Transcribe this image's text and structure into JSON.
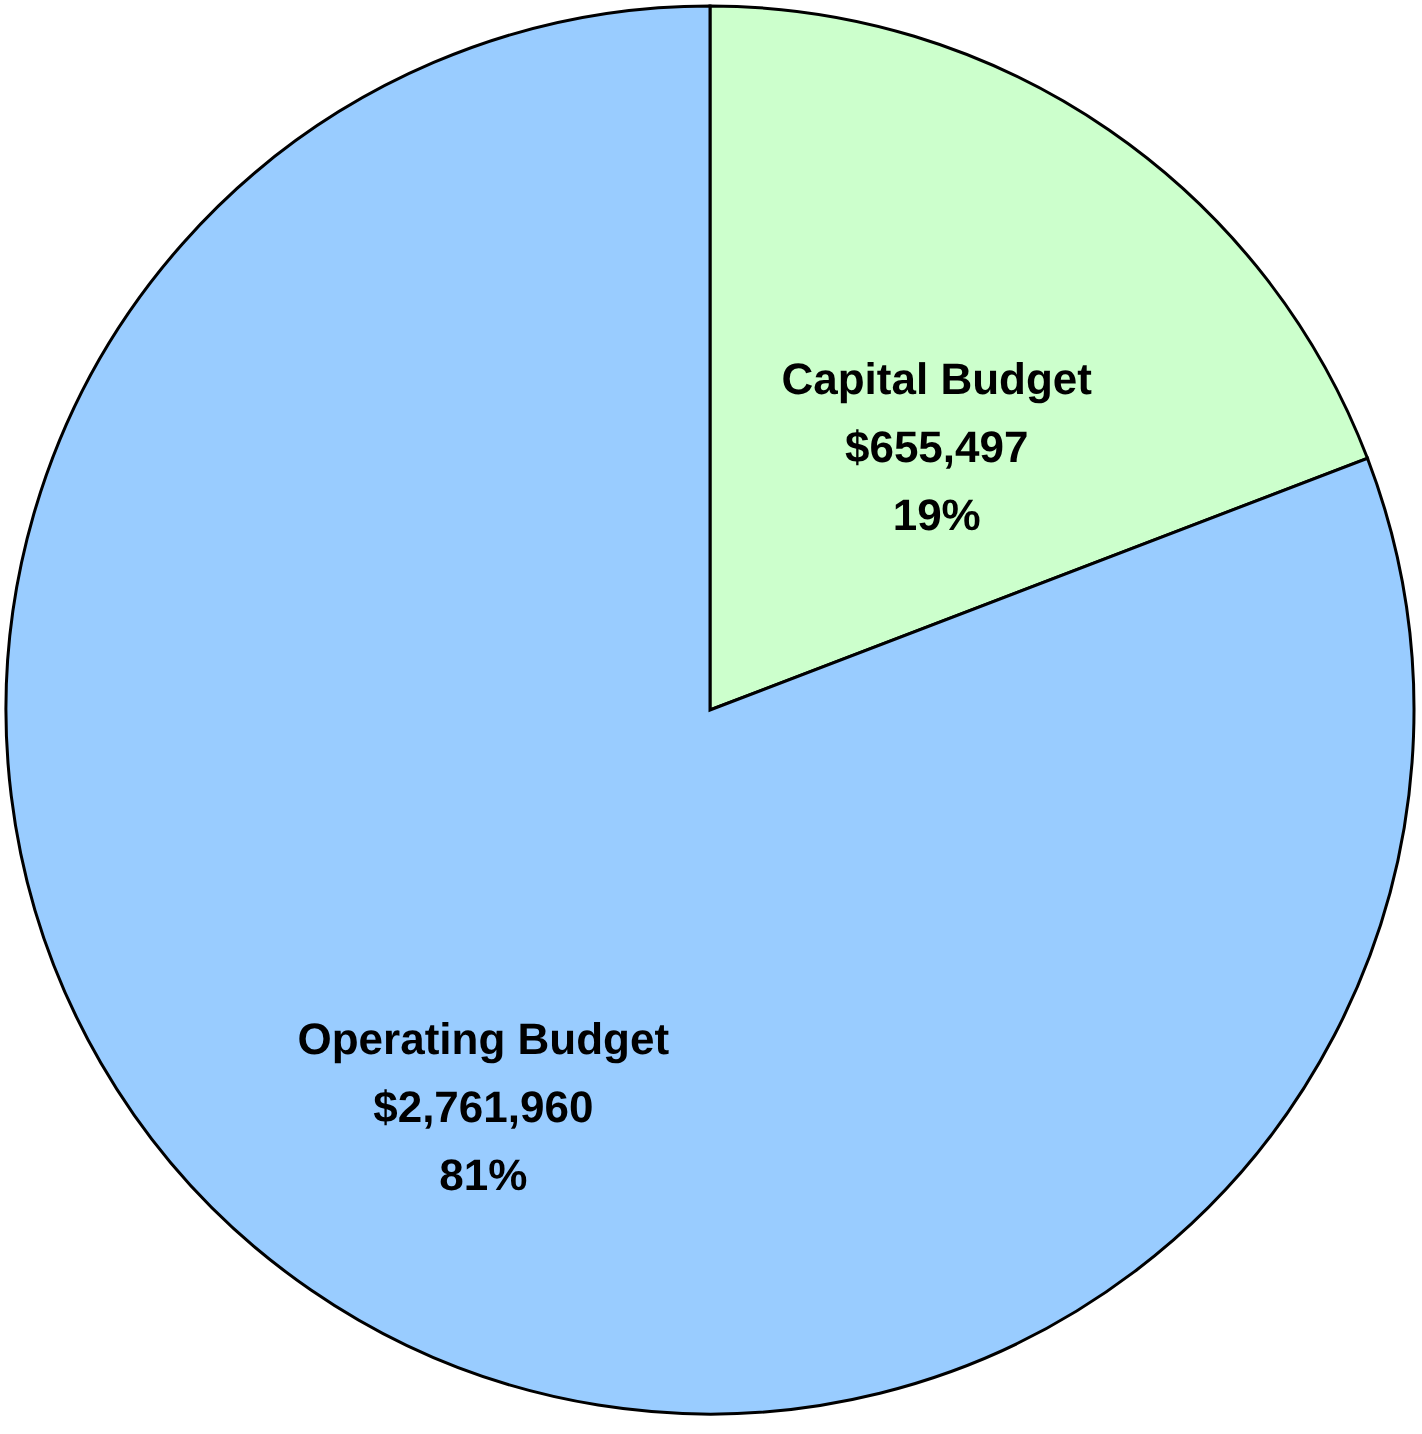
{
  "chart_data": {
    "type": "pie",
    "categories": [
      "Capital Budget",
      "Operating Budget"
    ],
    "values": [
      655497,
      2761960
    ],
    "colors": [
      "#ccffcc",
      "#99ccff"
    ],
    "value_labels": [
      "$655,497\n19%",
      "$2,761,960\n81%"
    ],
    "legend": false
  }
}
